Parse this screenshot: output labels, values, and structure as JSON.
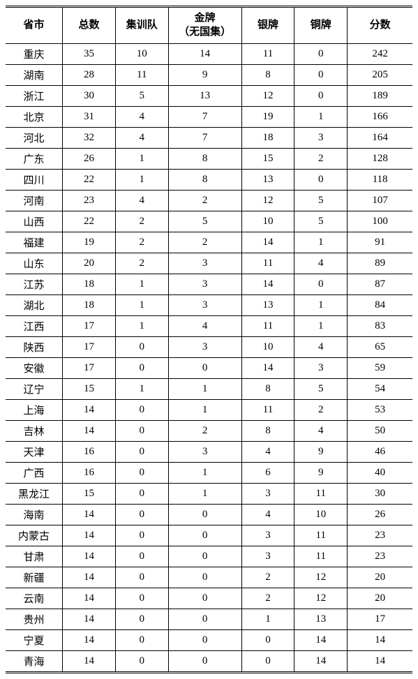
{
  "table": {
    "columns": [
      {
        "key": "province",
        "label": "省市"
      },
      {
        "key": "total",
        "label": "总数"
      },
      {
        "key": "jixun",
        "label": "集训队"
      },
      {
        "key": "gold",
        "label": "金牌\n（无国集）"
      },
      {
        "key": "silver",
        "label": "银牌"
      },
      {
        "key": "bronze",
        "label": "铜牌"
      },
      {
        "key": "score",
        "label": "分数"
      }
    ],
    "rows": [
      {
        "province": "重庆",
        "total": 35,
        "jixun": 10,
        "gold": 14,
        "silver": 11,
        "bronze": 0,
        "score": 242
      },
      {
        "province": "湖南",
        "total": 28,
        "jixun": 11,
        "gold": 9,
        "silver": 8,
        "bronze": 0,
        "score": 205
      },
      {
        "province": "浙江",
        "total": 30,
        "jixun": 5,
        "gold": 13,
        "silver": 12,
        "bronze": 0,
        "score": 189
      },
      {
        "province": "北京",
        "total": 31,
        "jixun": 4,
        "gold": 7,
        "silver": 19,
        "bronze": 1,
        "score": 166
      },
      {
        "province": "河北",
        "total": 32,
        "jixun": 4,
        "gold": 7,
        "silver": 18,
        "bronze": 3,
        "score": 164
      },
      {
        "province": "广东",
        "total": 26,
        "jixun": 1,
        "gold": 8,
        "silver": 15,
        "bronze": 2,
        "score": 128
      },
      {
        "province": "四川",
        "total": 22,
        "jixun": 1,
        "gold": 8,
        "silver": 13,
        "bronze": 0,
        "score": 118
      },
      {
        "province": "河南",
        "total": 23,
        "jixun": 4,
        "gold": 2,
        "silver": 12,
        "bronze": 5,
        "score": 107
      },
      {
        "province": "山西",
        "total": 22,
        "jixun": 2,
        "gold": 5,
        "silver": 10,
        "bronze": 5,
        "score": 100
      },
      {
        "province": "福建",
        "total": 19,
        "jixun": 2,
        "gold": 2,
        "silver": 14,
        "bronze": 1,
        "score": 91
      },
      {
        "province": "山东",
        "total": 20,
        "jixun": 2,
        "gold": 3,
        "silver": 11,
        "bronze": 4,
        "score": 89
      },
      {
        "province": "江苏",
        "total": 18,
        "jixun": 1,
        "gold": 3,
        "silver": 14,
        "bronze": 0,
        "score": 87
      },
      {
        "province": "湖北",
        "total": 18,
        "jixun": 1,
        "gold": 3,
        "silver": 13,
        "bronze": 1,
        "score": 84
      },
      {
        "province": "江西",
        "total": 17,
        "jixun": 1,
        "gold": 4,
        "silver": 11,
        "bronze": 1,
        "score": 83
      },
      {
        "province": "陕西",
        "total": 17,
        "jixun": 0,
        "gold": 3,
        "silver": 10,
        "bronze": 4,
        "score": 65
      },
      {
        "province": "安徽",
        "total": 17,
        "jixun": 0,
        "gold": 0,
        "silver": 14,
        "bronze": 3,
        "score": 59
      },
      {
        "province": "辽宁",
        "total": 15,
        "jixun": 1,
        "gold": 1,
        "silver": 8,
        "bronze": 5,
        "score": 54
      },
      {
        "province": "上海",
        "total": 14,
        "jixun": 0,
        "gold": 1,
        "silver": 11,
        "bronze": 2,
        "score": 53
      },
      {
        "province": "吉林",
        "total": 14,
        "jixun": 0,
        "gold": 2,
        "silver": 8,
        "bronze": 4,
        "score": 50
      },
      {
        "province": "天津",
        "total": 16,
        "jixun": 0,
        "gold": 3,
        "silver": 4,
        "bronze": 9,
        "score": 46
      },
      {
        "province": "广西",
        "total": 16,
        "jixun": 0,
        "gold": 1,
        "silver": 6,
        "bronze": 9,
        "score": 40
      },
      {
        "province": "黑龙江",
        "total": 15,
        "jixun": 0,
        "gold": 1,
        "silver": 3,
        "bronze": 11,
        "score": 30
      },
      {
        "province": "海南",
        "total": 14,
        "jixun": 0,
        "gold": 0,
        "silver": 4,
        "bronze": 10,
        "score": 26
      },
      {
        "province": "内蒙古",
        "total": 14,
        "jixun": 0,
        "gold": 0,
        "silver": 3,
        "bronze": 11,
        "score": 23
      },
      {
        "province": "甘肃",
        "total": 14,
        "jixun": 0,
        "gold": 0,
        "silver": 3,
        "bronze": 11,
        "score": 23
      },
      {
        "province": "新疆",
        "total": 14,
        "jixun": 0,
        "gold": 0,
        "silver": 2,
        "bronze": 12,
        "score": 20
      },
      {
        "province": "云南",
        "total": 14,
        "jixun": 0,
        "gold": 0,
        "silver": 2,
        "bronze": 12,
        "score": 20
      },
      {
        "province": "贵州",
        "total": 14,
        "jixun": 0,
        "gold": 0,
        "silver": 1,
        "bronze": 13,
        "score": 17
      },
      {
        "province": "宁夏",
        "total": 14,
        "jixun": 0,
        "gold": 0,
        "silver": 0,
        "bronze": 14,
        "score": 14
      },
      {
        "province": "青海",
        "total": 14,
        "jixun": 0,
        "gold": 0,
        "silver": 0,
        "bronze": 14,
        "score": 14
      }
    ],
    "styling": {
      "background_color": "#ffffff",
      "text_color": "#000000",
      "border_color": "#000000",
      "font_family": "SimSun",
      "header_fontsize": 15,
      "cell_fontsize": 15,
      "header_fontweight": "bold",
      "border_top_style": "double",
      "border_bottom_style": "double",
      "header_border_bottom": "solid",
      "column_widths_percent": [
        14,
        13,
        13,
        18,
        13,
        13,
        16
      ]
    }
  }
}
